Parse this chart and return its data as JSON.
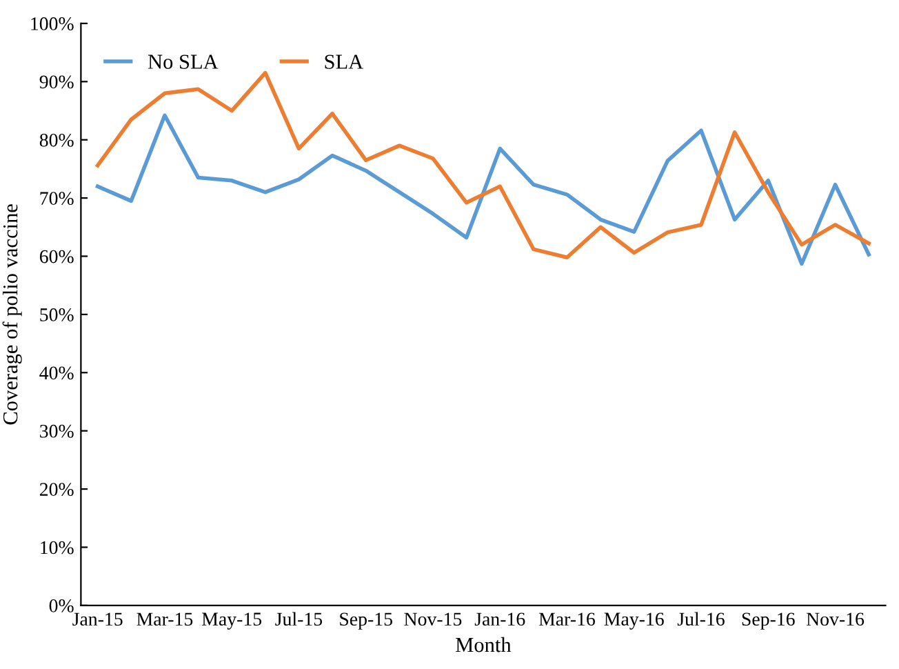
{
  "chart_data": {
    "type": "line",
    "xlabel": "Month",
    "ylabel": "Coverage of polio vaccine",
    "categories": [
      "Jan-15",
      null,
      "Mar-15",
      null,
      "May-15",
      null,
      "Jul-15",
      null,
      "Sep-15",
      null,
      "Nov-15",
      null,
      "Jan-16",
      null,
      "Mar-16",
      null,
      "May-16",
      null,
      "Jul-16",
      null,
      "Sep-16",
      null,
      "Nov-16",
      null
    ],
    "series": [
      {
        "name": "No SLA",
        "color": "#5b9bd5",
        "values": [
          72,
          69.5,
          84.2,
          73.5,
          73,
          71,
          73.2,
          77.3,
          74.7,
          71,
          67.3,
          63.2,
          78.5,
          72.3,
          70.6,
          66.3,
          64.2,
          76.4,
          81.6,
          66.3,
          73,
          58.7,
          72.3,
          60.3
        ]
      },
      {
        "name": "SLA",
        "color": "#ed7d31",
        "values": [
          75.6,
          83.5,
          88,
          88.7,
          85,
          91.5,
          78.5,
          84.5,
          76.5,
          79,
          76.8,
          69.2,
          72,
          61.2,
          59.8,
          65,
          60.6,
          64.1,
          65.4,
          81.3,
          71,
          62,
          65.4,
          62.2
        ]
      }
    ],
    "ylim": [
      0,
      100
    ],
    "yticks": [
      {
        "value": 0,
        "label": "0%"
      },
      {
        "value": 10,
        "label": "10%"
      },
      {
        "value": 20,
        "label": "20%"
      },
      {
        "value": 30,
        "label": "30%"
      },
      {
        "value": 40,
        "label": "40%"
      },
      {
        "value": 50,
        "label": "50%"
      },
      {
        "value": 60,
        "label": "60%"
      },
      {
        "value": 70,
        "label": "70%"
      },
      {
        "value": 80,
        "label": "80%"
      },
      {
        "value": 90,
        "label": "90%"
      },
      {
        "value": 100,
        "label": "100%"
      }
    ],
    "grid": false,
    "legend": "top left",
    "marker": "none",
    "line_style": "solid"
  }
}
